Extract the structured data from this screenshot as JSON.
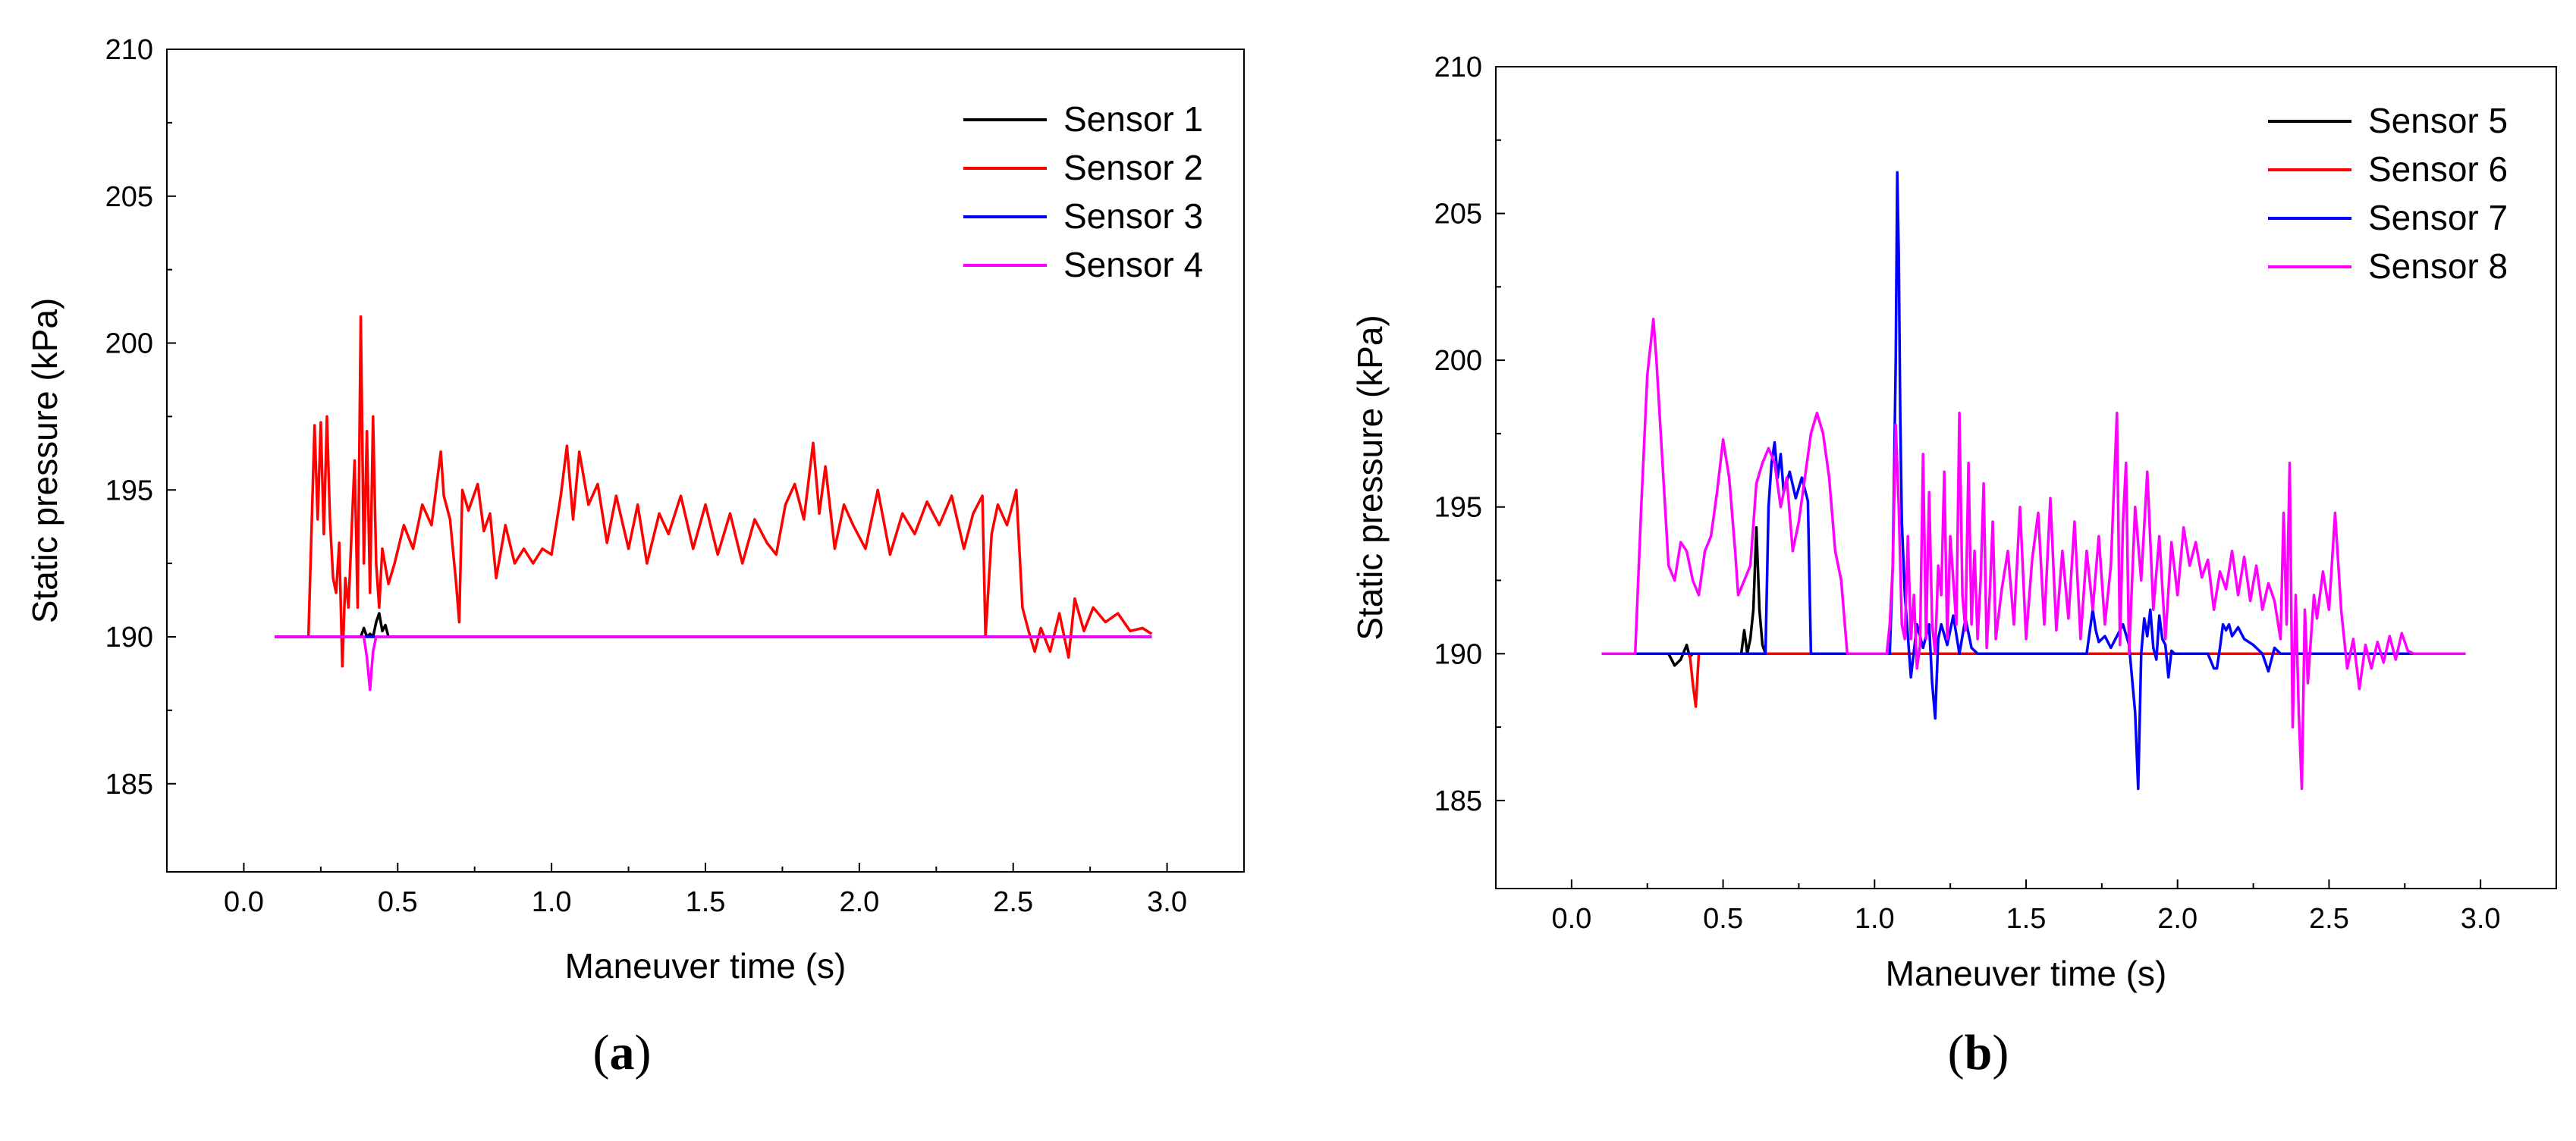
{
  "chart_data": [
    {
      "type": "line",
      "panel_label": "a",
      "xlabel": "Maneuver time (s)",
      "ylabel": "Static pressure (kPa)",
      "xlim": [
        -0.25,
        3.25
      ],
      "ylim": [
        182,
        210
      ],
      "xticks": [
        0.0,
        0.5,
        1.0,
        1.5,
        2.0,
        2.5,
        3.0
      ],
      "xtick_labels": [
        "0.0",
        "0.5",
        "1.0",
        "1.5",
        "2.0",
        "2.5",
        "3.0"
      ],
      "yticks": [
        185,
        190,
        195,
        200,
        205,
        210
      ],
      "ytick_labels": [
        "185",
        "190",
        "195",
        "200",
        "205",
        "210"
      ],
      "legend_position": "top-right",
      "series": [
        {
          "name": "Sensor 1",
          "color": "#000000",
          "x": [
            0.1,
            0.38,
            0.39,
            0.4,
            0.41,
            0.42,
            0.43,
            0.44,
            0.45,
            0.46,
            0.47,
            0.48,
            2.95
          ],
          "y": [
            190.0,
            190.0,
            190.3,
            190.0,
            190.1,
            190.0,
            190.5,
            190.8,
            190.2,
            190.4,
            190.0,
            190.0,
            190.0
          ]
        },
        {
          "name": "Sensor 2",
          "color": "#ff0000",
          "x": [
            0.1,
            0.21,
            0.23,
            0.24,
            0.25,
            0.26,
            0.27,
            0.28,
            0.29,
            0.3,
            0.31,
            0.32,
            0.33,
            0.34,
            0.35,
            0.36,
            0.37,
            0.38,
            0.39,
            0.4,
            0.41,
            0.42,
            0.43,
            0.44,
            0.45,
            0.47,
            0.49,
            0.52,
            0.55,
            0.58,
            0.61,
            0.64,
            0.65,
            0.67,
            0.69,
            0.7,
            0.71,
            0.73,
            0.76,
            0.78,
            0.8,
            0.82,
            0.85,
            0.88,
            0.91,
            0.94,
            0.97,
            1.0,
            1.03,
            1.05,
            1.07,
            1.09,
            1.12,
            1.15,
            1.18,
            1.21,
            1.25,
            1.28,
            1.31,
            1.35,
            1.38,
            1.42,
            1.46,
            1.5,
            1.54,
            1.58,
            1.62,
            1.66,
            1.7,
            1.73,
            1.76,
            1.79,
            1.82,
            1.85,
            1.87,
            1.89,
            1.92,
            1.95,
            1.98,
            2.02,
            2.06,
            2.1,
            2.14,
            2.18,
            2.22,
            2.26,
            2.3,
            2.34,
            2.37,
            2.4,
            2.41,
            2.43,
            2.45,
            2.48,
            2.51,
            2.53,
            2.55,
            2.57,
            2.59,
            2.62,
            2.65,
            2.68,
            2.7,
            2.73,
            2.76,
            2.8,
            2.84,
            2.88,
            2.92,
            2.95
          ],
          "y": [
            190.0,
            190.0,
            197.2,
            194.0,
            197.3,
            193.5,
            197.5,
            194.0,
            192.0,
            191.5,
            193.2,
            189.0,
            192.0,
            191.0,
            193.5,
            196.0,
            191.0,
            200.9,
            192.5,
            197.0,
            191.5,
            197.5,
            192.5,
            191.0,
            193.0,
            191.8,
            192.5,
            193.8,
            193.0,
            194.5,
            193.8,
            196.3,
            194.8,
            194.0,
            191.8,
            190.5,
            195.0,
            194.3,
            195.2,
            193.6,
            194.2,
            192.0,
            193.8,
            192.5,
            193.0,
            192.5,
            193.0,
            192.8,
            194.8,
            196.5,
            194.0,
            196.3,
            194.5,
            195.2,
            193.2,
            194.8,
            193.0,
            194.5,
            192.5,
            194.2,
            193.5,
            194.8,
            193.0,
            194.5,
            192.8,
            194.2,
            192.5,
            194.0,
            193.2,
            192.8,
            194.5,
            195.2,
            194.0,
            196.6,
            194.2,
            195.8,
            193.0,
            194.5,
            193.8,
            193.0,
            195.0,
            192.8,
            194.2,
            193.5,
            194.6,
            193.8,
            194.8,
            193.0,
            194.2,
            194.8,
            190.0,
            193.5,
            194.5,
            193.8,
            195.0,
            191.0,
            190.2,
            189.5,
            190.3,
            189.5,
            190.8,
            189.3,
            191.3,
            190.2,
            191.0,
            190.5,
            190.8,
            190.2,
            190.3,
            190.1
          ]
        },
        {
          "name": "Sensor 3",
          "color": "#0000ff",
          "x": [
            0.1,
            2.95
          ],
          "y": [
            190.0,
            190.0
          ]
        },
        {
          "name": "Sensor 4",
          "color": "#ff00ff",
          "x": [
            0.1,
            0.39,
            0.4,
            0.41,
            0.42,
            0.43,
            0.44,
            2.95
          ],
          "y": [
            190.0,
            190.0,
            189.3,
            188.2,
            189.5,
            190.0,
            190.0,
            190.0
          ]
        }
      ]
    },
    {
      "type": "line",
      "panel_label": "b",
      "xlabel": "Maneuver time (s)",
      "ylabel": "Static pressure (kPa)",
      "xlim": [
        -0.25,
        3.25
      ],
      "ylim": [
        182,
        210
      ],
      "xticks": [
        0.0,
        0.5,
        1.0,
        1.5,
        2.0,
        2.5,
        3.0
      ],
      "xtick_labels": [
        "0.0",
        "0.5",
        "1.0",
        "1.5",
        "2.0",
        "2.5",
        "3.0"
      ],
      "yticks": [
        185,
        190,
        195,
        200,
        205,
        210
      ],
      "ytick_labels": [
        "185",
        "190",
        "195",
        "200",
        "205",
        "210"
      ],
      "legend_position": "top-right",
      "series": [
        {
          "name": "Sensor 5",
          "color": "#000000",
          "x": [
            0.1,
            0.32,
            0.34,
            0.36,
            0.38,
            0.39,
            0.4,
            0.42,
            0.56,
            0.57,
            0.58,
            0.59,
            0.6,
            0.61,
            0.62,
            0.63,
            0.64,
            0.65,
            0.66,
            2.95
          ],
          "y": [
            190.0,
            190.0,
            189.6,
            189.8,
            190.3,
            189.9,
            190.0,
            190.0,
            190.0,
            190.8,
            190.0,
            190.5,
            191.5,
            194.3,
            191.5,
            190.3,
            190.0,
            190.0,
            190.0,
            190.0
          ]
        },
        {
          "name": "Sensor 6",
          "color": "#ff0000",
          "x": [
            0.1,
            0.39,
            0.4,
            0.41,
            0.42,
            0.43,
            2.95
          ],
          "y": [
            190.0,
            190.0,
            189.0,
            188.2,
            190.0,
            190.0,
            190.0
          ]
        },
        {
          "name": "Sensor 7",
          "color": "#0000ff",
          "x": [
            0.1,
            0.64,
            0.65,
            0.66,
            0.67,
            0.68,
            0.69,
            0.7,
            0.72,
            0.74,
            0.76,
            0.78,
            0.79,
            1.05,
            1.06,
            1.07,
            1.075,
            1.08,
            1.085,
            1.09,
            1.1,
            1.12,
            1.14,
            1.16,
            1.18,
            1.19,
            1.2,
            1.21,
            1.22,
            1.24,
            1.26,
            1.28,
            1.3,
            1.32,
            1.34,
            1.7,
            1.72,
            1.73,
            1.74,
            1.76,
            1.78,
            1.8,
            1.82,
            1.84,
            1.86,
            1.87,
            1.88,
            1.89,
            1.9,
            1.91,
            1.92,
            1.93,
            1.94,
            1.95,
            1.96,
            1.97,
            1.98,
            1.99,
            2.0,
            2.02,
            2.1,
            2.12,
            2.13,
            2.14,
            2.15,
            2.16,
            2.17,
            2.18,
            2.2,
            2.22,
            2.25,
            2.28,
            2.3,
            2.32,
            2.34,
            2.36,
            2.95
          ],
          "y": [
            190.0,
            190.0,
            195.0,
            196.5,
            197.2,
            196.0,
            196.8,
            195.5,
            196.2,
            195.3,
            196.0,
            195.2,
            190.0,
            190.0,
            193.0,
            200.0,
            206.4,
            203.5,
            198.0,
            194.5,
            192.0,
            189.2,
            191.0,
            190.2,
            191.0,
            189.0,
            187.8,
            190.5,
            191.0,
            190.3,
            191.3,
            190.0,
            191.2,
            190.2,
            190.0,
            190.0,
            191.5,
            190.8,
            190.4,
            190.6,
            190.2,
            190.6,
            191.0,
            190.3,
            188.0,
            185.4,
            190.0,
            191.2,
            190.6,
            191.5,
            190.2,
            189.8,
            191.3,
            190.5,
            190.3,
            189.2,
            190.1,
            190.0,
            190.0,
            190.0,
            190.0,
            189.5,
            189.5,
            190.2,
            191.0,
            190.8,
            191.0,
            190.6,
            190.9,
            190.5,
            190.3,
            190.0,
            189.4,
            190.2,
            190.0,
            190.0,
            190.0
          ]
        },
        {
          "name": "Sensor 8",
          "color": "#ff00ff",
          "x": [
            0.1,
            0.21,
            0.23,
            0.25,
            0.27,
            0.28,
            0.3,
            0.32,
            0.34,
            0.36,
            0.38,
            0.4,
            0.42,
            0.44,
            0.46,
            0.48,
            0.5,
            0.52,
            0.54,
            0.55,
            0.57,
            0.59,
            0.61,
            0.63,
            0.65,
            0.67,
            0.69,
            0.71,
            0.73,
            0.75,
            0.77,
            0.79,
            0.81,
            0.83,
            0.85,
            0.87,
            0.89,
            0.91,
            1.04,
            1.05,
            1.06,
            1.07,
            1.08,
            1.09,
            1.1,
            1.11,
            1.12,
            1.13,
            1.14,
            1.15,
            1.16,
            1.17,
            1.18,
            1.19,
            1.2,
            1.21,
            1.22,
            1.23,
            1.24,
            1.25,
            1.26,
            1.27,
            1.28,
            1.29,
            1.3,
            1.31,
            1.32,
            1.33,
            1.34,
            1.35,
            1.36,
            1.37,
            1.38,
            1.39,
            1.4,
            1.42,
            1.44,
            1.46,
            1.48,
            1.5,
            1.52,
            1.54,
            1.56,
            1.58,
            1.6,
            1.62,
            1.64,
            1.66,
            1.68,
            1.7,
            1.72,
            1.74,
            1.76,
            1.78,
            1.8,
            1.81,
            1.82,
            1.83,
            1.84,
            1.86,
            1.88,
            1.9,
            1.92,
            1.94,
            1.96,
            1.98,
            2.0,
            2.02,
            2.04,
            2.06,
            2.08,
            2.1,
            2.12,
            2.14,
            2.16,
            2.18,
            2.2,
            2.22,
            2.24,
            2.26,
            2.28,
            2.3,
            2.32,
            2.34,
            2.35,
            2.36,
            2.37,
            2.38,
            2.39,
            2.4,
            2.41,
            2.42,
            2.43,
            2.44,
            2.45,
            2.46,
            2.48,
            2.5,
            2.52,
            2.54,
            2.56,
            2.58,
            2.6,
            2.62,
            2.64,
            2.66,
            2.68,
            2.7,
            2.72,
            2.74,
            2.76,
            2.78,
            2.8,
            2.95
          ],
          "y": [
            190.0,
            190.0,
            195.0,
            199.5,
            201.4,
            200.0,
            196.5,
            193.0,
            192.5,
            193.8,
            193.5,
            192.5,
            192.0,
            193.5,
            194.0,
            195.5,
            197.3,
            196.0,
            193.5,
            192.0,
            192.5,
            193.0,
            195.8,
            196.5,
            197.0,
            196.5,
            195.0,
            196.0,
            193.5,
            194.5,
            196.0,
            197.5,
            198.2,
            197.5,
            196.0,
            193.5,
            192.5,
            190.0,
            190.0,
            191.0,
            193.0,
            197.8,
            195.0,
            191.0,
            190.5,
            194.0,
            190.5,
            192.0,
            189.5,
            190.3,
            196.8,
            190.5,
            195.5,
            191.0,
            190.0,
            193.0,
            192.0,
            196.2,
            190.5,
            194.0,
            192.5,
            191.0,
            198.2,
            192.0,
            190.8,
            196.5,
            191.0,
            193.5,
            190.5,
            192.5,
            195.8,
            190.2,
            192.0,
            194.5,
            190.5,
            192.2,
            193.5,
            191.0,
            195.0,
            190.5,
            193.2,
            194.8,
            191.0,
            195.3,
            190.8,
            193.5,
            191.2,
            194.5,
            190.5,
            193.5,
            191.5,
            194.0,
            191.0,
            193.0,
            198.2,
            190.3,
            194.5,
            196.5,
            190.0,
            195.0,
            192.5,
            196.2,
            191.5,
            194.0,
            190.5,
            193.8,
            192.0,
            194.3,
            193.0,
            193.8,
            192.6,
            193.2,
            191.5,
            192.8,
            192.2,
            193.5,
            192.0,
            193.3,
            191.8,
            193.0,
            191.5,
            192.4,
            191.8,
            190.5,
            194.8,
            191.0,
            196.5,
            187.5,
            192.0,
            188.0,
            185.4,
            191.5,
            189.0,
            190.5,
            192.0,
            191.2,
            192.8,
            191.5,
            194.8,
            191.5,
            189.5,
            190.5,
            188.8,
            190.3,
            189.5,
            190.4,
            189.7,
            190.6,
            189.8,
            190.7,
            190.1,
            190.0,
            190.0,
            190.0
          ]
        }
      ]
    }
  ]
}
